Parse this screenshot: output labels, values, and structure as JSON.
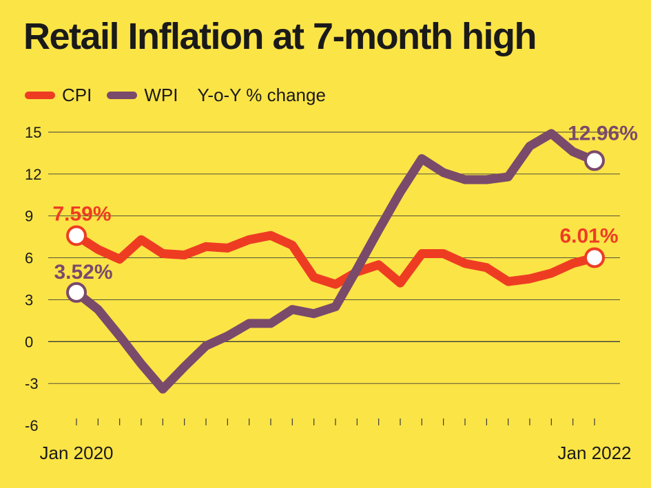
{
  "chart_data": {
    "type": "line",
    "title": "Retail Inflation at 7-month high",
    "unit_label": "Y-o-Y % change",
    "x_labels": [
      "Jan 2020",
      "Jan 2022"
    ],
    "x_count": 25,
    "ylim": [
      -6,
      15
    ],
    "yticks": [
      -6,
      -3,
      0,
      3,
      6,
      9,
      12,
      15
    ],
    "grid": true,
    "legend_position": "top-left",
    "series": [
      {
        "name": "CPI",
        "color": "#ee3c23",
        "values": [
          7.59,
          6.6,
          5.9,
          7.3,
          6.3,
          6.2,
          6.8,
          6.7,
          7.3,
          7.6,
          6.9,
          4.6,
          4.1,
          5.0,
          5.5,
          4.2,
          6.3,
          6.3,
          5.6,
          5.3,
          4.3,
          4.5,
          4.9,
          5.6,
          6.01
        ],
        "end_labels": {
          "first": "7.59%",
          "last": "6.01%"
        }
      },
      {
        "name": "WPI",
        "color": "#7a4a6b",
        "values": [
          3.52,
          2.3,
          0.4,
          -1.6,
          -3.4,
          -1.8,
          -0.3,
          0.4,
          1.3,
          1.3,
          2.3,
          2.0,
          2.5,
          5.2,
          8.0,
          10.7,
          13.1,
          12.1,
          11.6,
          11.6,
          11.8,
          14.0,
          14.9,
          13.6,
          12.96
        ],
        "end_labels": {
          "first": "3.52%",
          "last": "12.96%"
        }
      }
    ]
  }
}
